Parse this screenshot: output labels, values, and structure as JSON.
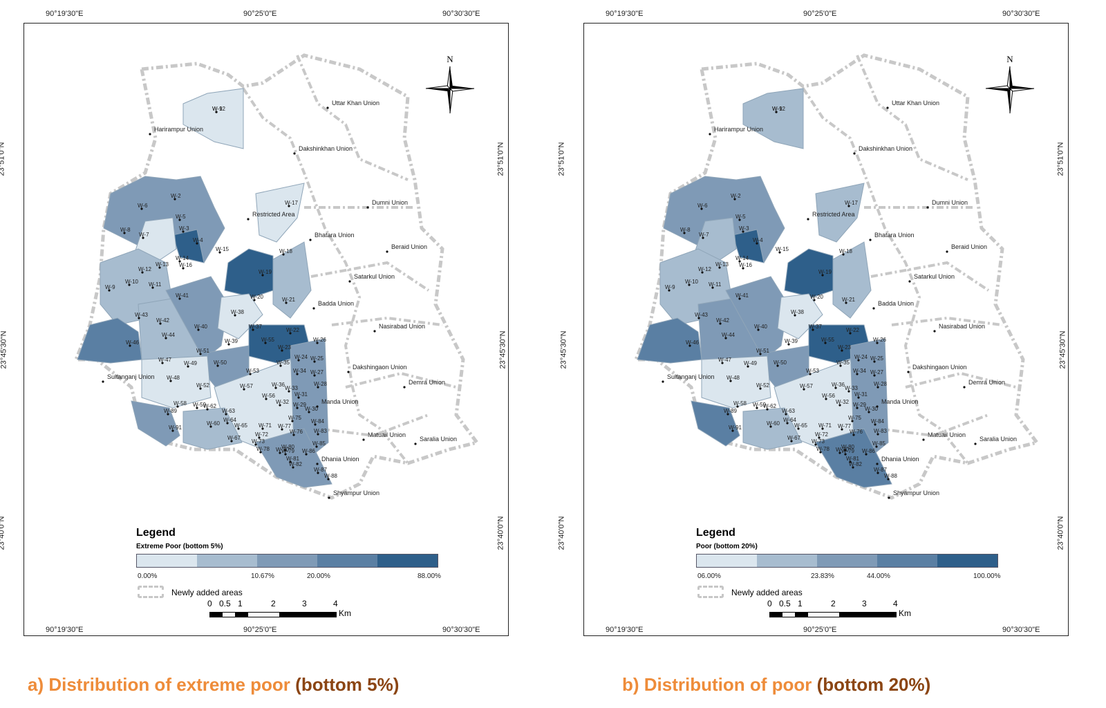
{
  "coords": {
    "top": [
      "90°19'30\"E",
      "90°25'0\"E",
      "90°30'30\"E"
    ],
    "bottom": [
      "90°19'30\"E",
      "90°25'0\"E",
      "90°30'30\"E"
    ],
    "left": [
      "23°51'0\"N",
      "23°45'30\"N",
      "23°40'0\"N"
    ],
    "right": [
      "23°51'0\"N",
      "23°45'30\"N",
      "23°40'0\"N"
    ]
  },
  "north_label": "N",
  "legend": {
    "title": "Legend",
    "newly_added": "Newly added areas"
  },
  "scale": {
    "numbers": [
      "0",
      "0.5",
      "1",
      "2",
      "3",
      "4"
    ],
    "unit": "Km"
  },
  "panels": [
    {
      "legend_sub": "Extreme Poor (bottom 5%)",
      "ramp_labels": [
        "0.00%",
        "10.67%",
        "20.00%",
        "88.00%"
      ],
      "caption_part1": "a) Distribution of extreme poor ",
      "caption_part2": "(bottom 5%)"
    },
    {
      "legend_sub": "Poor (bottom 20%)",
      "ramp_labels": [
        "06.00%",
        "23.83%",
        "44.00%",
        "100.00%"
      ],
      "caption_part1": "b) Distribution of poor ",
      "caption_part2": "(bottom 20%)"
    }
  ],
  "colors": [
    "#dbe6ee",
    "#a7bccf",
    "#7f9ab6",
    "#5a7fa3",
    "#2e5f8a"
  ],
  "unions": [
    "Uttar Khan Union",
    "Harirampur Union",
    "Dakshinkhan Union",
    "Dumni Union",
    "Restricted Area",
    "Bhatara Union",
    "Beraid Union",
    "Satarkul Union",
    "Badda Union",
    "Nasirabad Union",
    "Sultanganj Union",
    "Dakshingaon Union",
    "Demra Union",
    "Manda Union",
    "Matuail Union",
    "Saralia Union",
    "Dhania Union",
    "Shyampur Union"
  ],
  "wards": [
    "W-1",
    "W-2",
    "W-3",
    "W-4",
    "W-5",
    "W-6",
    "W-7",
    "W-8",
    "W-9",
    "W-10",
    "W-11",
    "W-12",
    "W-13",
    "W-14",
    "W-15",
    "W-16",
    "W-17",
    "W-18",
    "W-19",
    "W-20",
    "W-21",
    "W-22",
    "W-23",
    "W-24",
    "W-25",
    "W-26",
    "W-27",
    "W-28",
    "W-29",
    "W-30",
    "W-31",
    "W-32",
    "W-33",
    "W-34",
    "W-35",
    "W-36",
    "W-37",
    "W-38",
    "W-39",
    "W-40",
    "W-41",
    "W-42",
    "W-43",
    "W-44",
    "W-46",
    "W-47",
    "W-48",
    "W-49",
    "W-50",
    "W-51",
    "W-52",
    "W-53",
    "W-55",
    "W-56",
    "W-57",
    "W-58",
    "W-59",
    "W-60",
    "W-62",
    "W-63",
    "W-64",
    "W-65",
    "W-67",
    "W-70",
    "W-71",
    "W-72",
    "W-73",
    "W-75",
    "W-76",
    "W-77",
    "W-78",
    "W-79",
    "W-80",
    "W-81",
    "W-82",
    "W-83",
    "W-84",
    "W-85",
    "W-86",
    "W-87",
    "W-88",
    "W-89",
    "W-91",
    "W-92"
  ]
}
